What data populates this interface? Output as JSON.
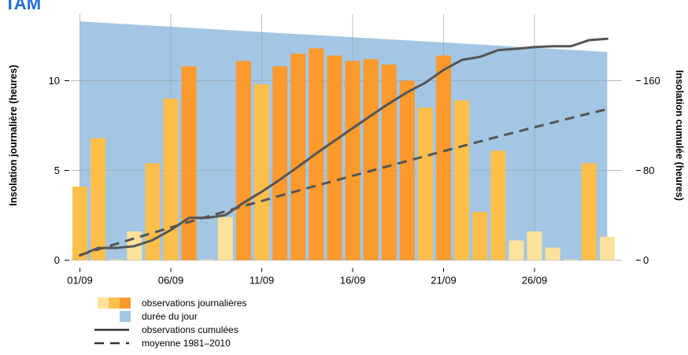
{
  "page_title": "TAM",
  "chart_data": {
    "type": "bar",
    "x_dates": [
      "01/09",
      "02/09",
      "03/09",
      "04/09",
      "05/09",
      "06/09",
      "07/09",
      "08/09",
      "09/09",
      "10/09",
      "11/09",
      "12/09",
      "13/09",
      "14/09",
      "15/09",
      "16/09",
      "17/09",
      "18/09",
      "19/09",
      "20/09",
      "21/09",
      "22/09",
      "23/09",
      "24/09",
      "25/09",
      "26/09",
      "27/09",
      "28/09",
      "29/09",
      "30/09"
    ],
    "x_ticks": [
      "01/09",
      "06/09",
      "11/09",
      "16/09",
      "21/09",
      "26/09"
    ],
    "ylabel_left": "Insolation journalière (heures)",
    "ylabel_right": "Insolation cumulée (heures)",
    "ylim_left": [
      0,
      13.3
    ],
    "ylim_right": [
      0,
      212.8
    ],
    "yticks_left": [
      0,
      5,
      10
    ],
    "yticks_right": [
      0,
      80,
      160
    ],
    "colors": {
      "level1": "#fde29c",
      "level2": "#fdbf4b",
      "level3": "#fd9a2d",
      "daylength": "#a3c6e4",
      "cumulative": "#555555",
      "normal": "#555555",
      "grid": "#9aa7b4"
    },
    "day_length": {
      "start": 13.3,
      "end": 11.6
    },
    "daily": [
      {
        "value": 4.1,
        "level": 2
      },
      {
        "value": 6.8,
        "level": 2
      },
      {
        "value": 0.0,
        "level": 1
      },
      {
        "value": 1.6,
        "level": 1
      },
      {
        "value": 5.4,
        "level": 2
      },
      {
        "value": 9.0,
        "level": 2
      },
      {
        "value": 10.8,
        "level": 3
      },
      {
        "value": 0.0,
        "level": 1
      },
      {
        "value": 2.4,
        "level": 1
      },
      {
        "value": 11.1,
        "level": 3
      },
      {
        "value": 9.8,
        "level": 2
      },
      {
        "value": 10.8,
        "level": 3
      },
      {
        "value": 11.5,
        "level": 3
      },
      {
        "value": 11.8,
        "level": 3
      },
      {
        "value": 11.4,
        "level": 3
      },
      {
        "value": 11.1,
        "level": 3
      },
      {
        "value": 11.2,
        "level": 3
      },
      {
        "value": 10.9,
        "level": 3
      },
      {
        "value": 10.0,
        "level": 3
      },
      {
        "value": 8.5,
        "level": 2
      },
      {
        "value": 11.4,
        "level": 3
      },
      {
        "value": 8.9,
        "level": 2
      },
      {
        "value": 2.7,
        "level": 2
      },
      {
        "value": 6.1,
        "level": 2
      },
      {
        "value": 1.1,
        "level": 1
      },
      {
        "value": 1.6,
        "level": 1
      },
      {
        "value": 0.7,
        "level": 1
      },
      {
        "value": 0.0,
        "level": 1
      },
      {
        "value": 5.4,
        "level": 2
      },
      {
        "value": 1.3,
        "level": 1
      }
    ],
    "cumulative": [
      4.1,
      10.9,
      10.9,
      12.5,
      17.9,
      26.9,
      37.7,
      37.7,
      40.1,
      51.2,
      61.0,
      71.8,
      83.3,
      95.1,
      106.5,
      117.6,
      128.8,
      139.7,
      149.7,
      158.2,
      169.6,
      178.5,
      181.2,
      187.3,
      188.4,
      190.0,
      190.7,
      190.7,
      196.1,
      197.4
    ],
    "normal_1981_2010": [
      4.5,
      9.5,
      14.5,
      19.4,
      24.3,
      29.2,
      34.0,
      38.8,
      43.5,
      48.2,
      52.8,
      57.4,
      61.9,
      66.4,
      70.8,
      75.2,
      79.6,
      84.0,
      88.4,
      92.8,
      97.2,
      101.5,
      105.8,
      110.1,
      114.3,
      118.5,
      122.6,
      126.7,
      130.7,
      134.6
    ],
    "legend": {
      "daily": "observations journalières",
      "daylength": "durée du jour",
      "cumulative": "observations cumulées",
      "normal": "moyenne 1981–2010"
    }
  }
}
